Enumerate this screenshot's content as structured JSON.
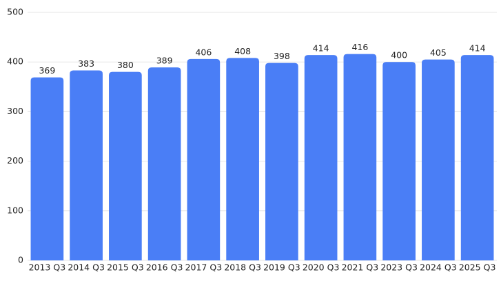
{
  "chart_data": {
    "type": "bar",
    "categories": [
      "2013 Q3",
      "2014 Q3",
      "2015 Q3",
      "2016 Q3",
      "2017 Q3",
      "2018 Q3",
      "2019 Q3",
      "2020 Q3",
      "2021 Q3",
      "2023 Q3",
      "2024 Q3",
      "2025 Q3"
    ],
    "values": [
      369,
      383,
      380,
      389,
      406,
      408,
      398,
      414,
      416,
      400,
      405,
      414
    ],
    "color": "#4a7ef6",
    "ylim": [
      0,
      500
    ],
    "yticks": [
      0,
      100,
      200,
      300,
      400,
      500
    ],
    "grid": true
  }
}
